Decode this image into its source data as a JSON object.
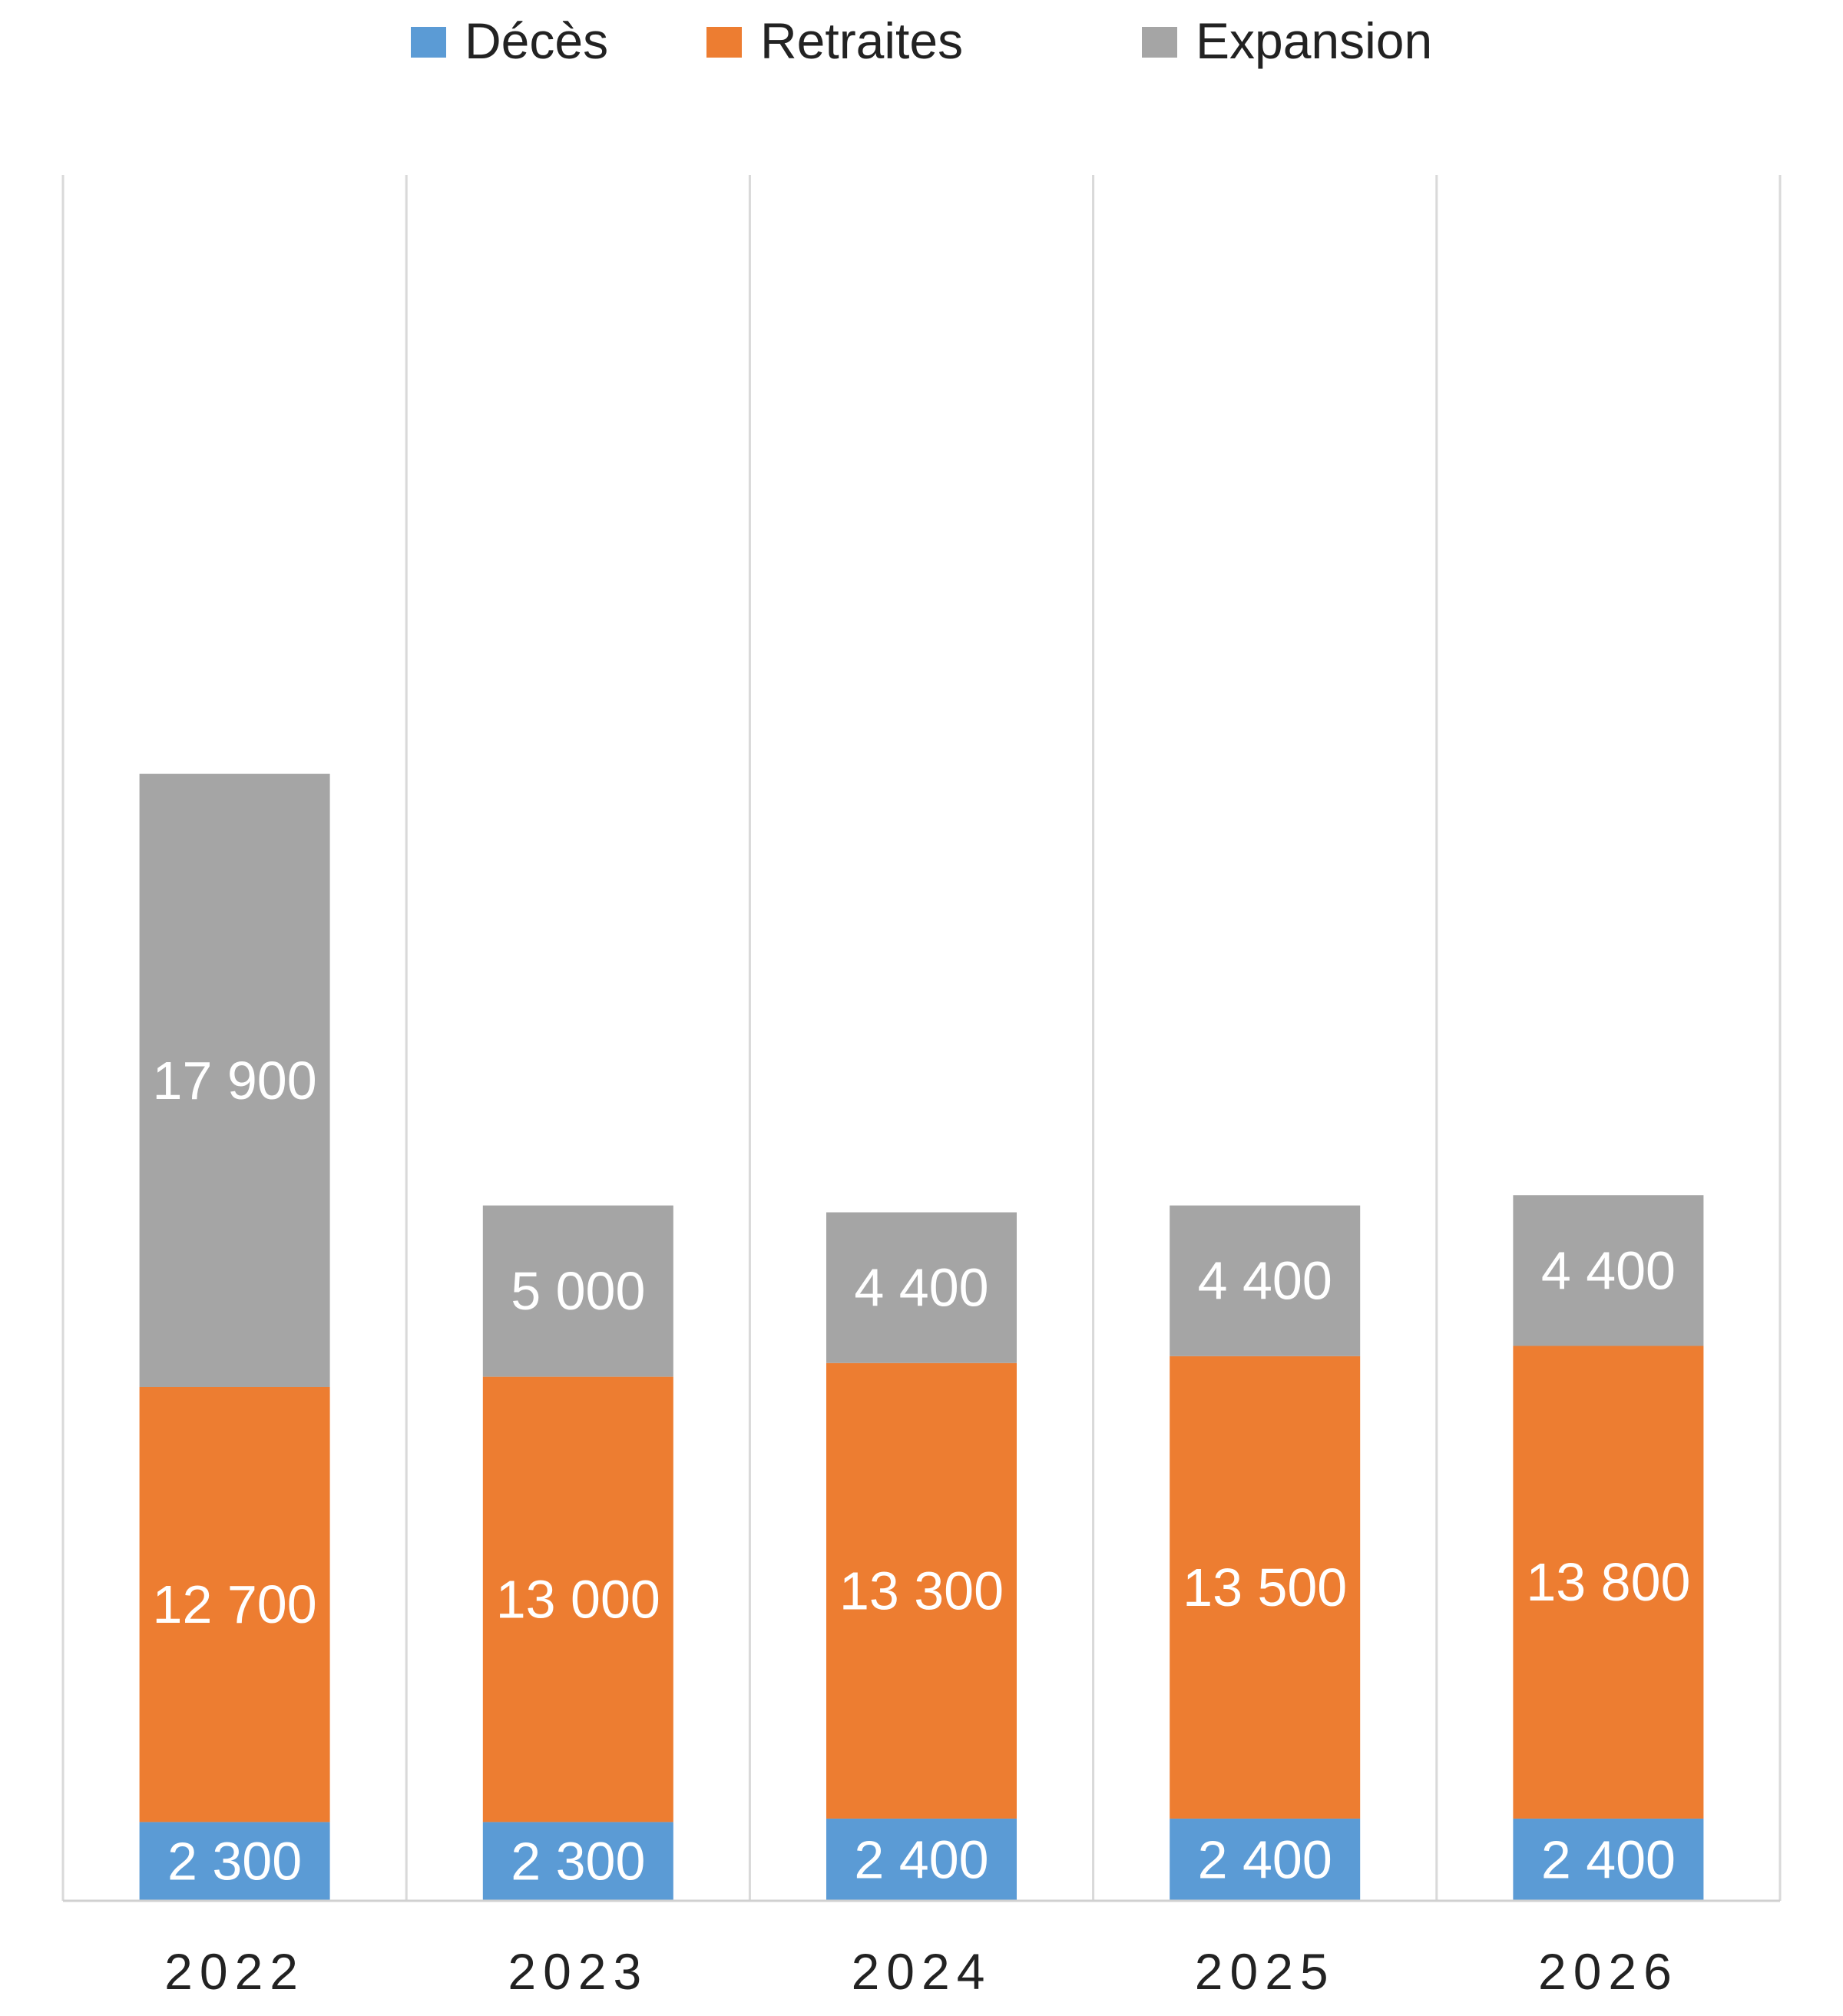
{
  "chart_data": {
    "type": "bar",
    "stacked": true,
    "title": "",
    "xlabel": "",
    "ylabel": "",
    "categories": [
      "2022",
      "2023",
      "2024",
      "2025",
      "2026"
    ],
    "series": [
      {
        "name": "Décès",
        "color": "#5B9BD5",
        "values": [
          2300,
          2300,
          2400,
          2400,
          2400
        ],
        "labels": [
          "2 300",
          "2 300",
          "2 400",
          "2 400",
          "2 400"
        ]
      },
      {
        "name": "Retraites",
        "color": "#ED7D31",
        "values": [
          12700,
          13000,
          13300,
          13500,
          13800
        ],
        "labels": [
          "12 700",
          "13 000",
          "13 300",
          "13 500",
          "13 800"
        ]
      },
      {
        "name": "Expansion",
        "color": "#A5A5A5",
        "values": [
          17900,
          5000,
          4400,
          4400,
          4400
        ],
        "labels": [
          "17 900",
          "5 000",
          "4 400",
          "4 400",
          "4 400"
        ]
      }
    ],
    "ylim": [
      0,
      35000
    ],
    "legend_position": "top",
    "grid": "vertical-category-separators",
    "data_labels": true
  }
}
